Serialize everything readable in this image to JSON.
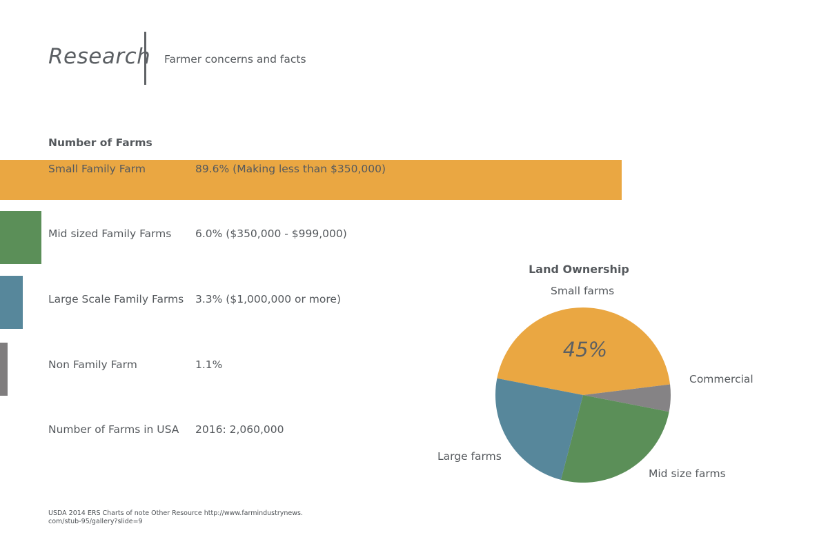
{
  "header": {
    "title": "Research",
    "subtitle": "Farmer concerns and facts"
  },
  "farms": {
    "heading": "Number of Farms",
    "rows": [
      {
        "label": "Small Family Farm",
        "value": "89.6% (Making less than $350,000)",
        "percent": 89.6,
        "color": "#eaa742"
      },
      {
        "label": "Mid sized Family Farms",
        "value": "6.0% ($350,000 - $999,000)",
        "percent": 6.0,
        "color": "#5b8f58"
      },
      {
        "label": "Large Scale Family Farms",
        "value": "3.3% ($1,000,000 or more)",
        "percent": 3.3,
        "color": "#57879b"
      },
      {
        "label": "Non Family Farm",
        "value": "1.1%",
        "percent": 1.1,
        "color": "#7f7d7e"
      },
      {
        "label": "Number of Farms in USA",
        "value": "2016: 2,060,000"
      }
    ]
  },
  "source": "USDA 2014 ERS Charts of note Other Resource http://www.farmindustrynews.\ncom/stub-95/gallery?slide=9",
  "chart_data": [
    {
      "type": "bar",
      "title": "Number of Farms",
      "categories": [
        "Small Family Farm",
        "Mid sized Family Farms",
        "Large Scale Family Farms",
        "Non Family Farm"
      ],
      "values": [
        89.6,
        6.0,
        3.3,
        1.1
      ],
      "orientation": "horizontal"
    },
    {
      "type": "pie",
      "title": "Land Ownership",
      "slices": [
        {
          "label": "Small farms",
          "value": 45,
          "color": "#eaa742",
          "shown_label": "45%"
        },
        {
          "label": "Commercial",
          "value": 5,
          "color": "#858385"
        },
        {
          "label": "Mid size farms",
          "value": 26,
          "color": "#5b8f58"
        },
        {
          "label": "Large farms",
          "value": 24,
          "color": "#57879b"
        }
      ]
    }
  ]
}
